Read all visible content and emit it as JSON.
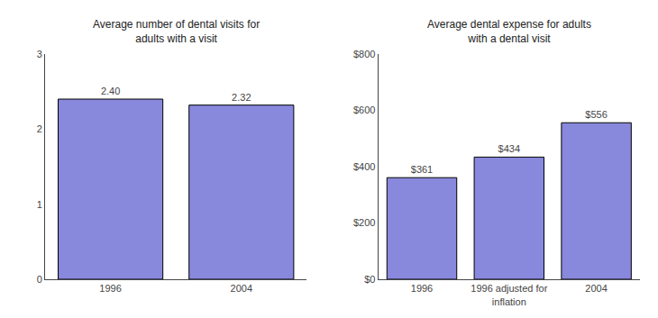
{
  "chart_data": [
    {
      "type": "bar",
      "title": "Average number of dental visits for\nadults with a visit",
      "categories": [
        "1996",
        "2004"
      ],
      "values": [
        2.4,
        2.32
      ],
      "value_labels": [
        "2.40",
        "2.32"
      ],
      "data_labels": true,
      "color": "#8888dd",
      "ylim": [
        0,
        3
      ],
      "yticks": [
        0,
        1,
        2,
        3
      ],
      "grid": false
    },
    {
      "type": "bar",
      "title": "Average dental expense for adults\nwith a dental visit",
      "categories": [
        "1996",
        "1996 adjusted for\ninflation",
        "2004"
      ],
      "values": [
        361,
        434,
        556
      ],
      "value_labels": [
        "$361",
        "$434",
        "$556"
      ],
      "data_labels": true,
      "color": "#8888dd",
      "ylim": [
        0,
        800
      ],
      "yticks": [
        {
          "value": 0,
          "label": "$0"
        },
        {
          "value": 200,
          "label": "$200"
        },
        {
          "value": 400,
          "label": "$400"
        },
        {
          "value": 600,
          "label": "$600"
        },
        {
          "value": 800,
          "label": "$800"
        }
      ],
      "grid": false
    }
  ]
}
